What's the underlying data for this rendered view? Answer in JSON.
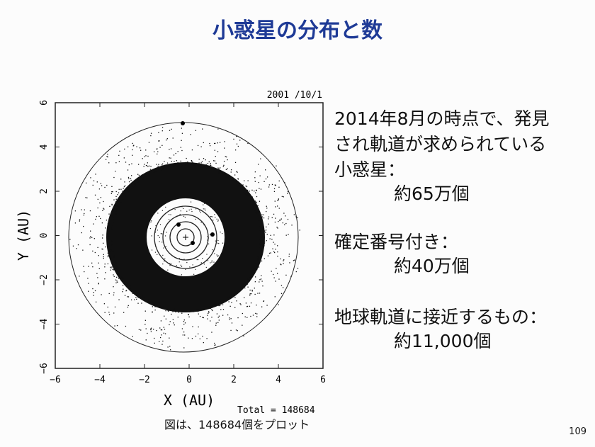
{
  "title": "小惑星の分布と数",
  "figure": {
    "date": "2001 /10/1",
    "x_label": "X (AU)",
    "y_label": "Y (AU)",
    "x_ticks": [
      "−6",
      "−4",
      "−2",
      "0",
      "2",
      "4",
      "6"
    ],
    "y_ticks": [
      "−6",
      "−4",
      "−2",
      "0",
      "2",
      "4",
      "6"
    ],
    "total": "Total = 148684",
    "caption": "図は、148684個をプロット"
  },
  "text_blocks": [
    {
      "heading": [
        "2014年8月の時点で、発見",
        "され軌道が求められている",
        "小惑星："
      ],
      "value": "約65万個"
    },
    {
      "heading": [
        "確定番号付き："
      ],
      "value": "約40万個"
    },
    {
      "heading": [
        "地球軌道に接近するもの："
      ],
      "value": "約11,000個"
    }
  ],
  "page_number": "109"
}
